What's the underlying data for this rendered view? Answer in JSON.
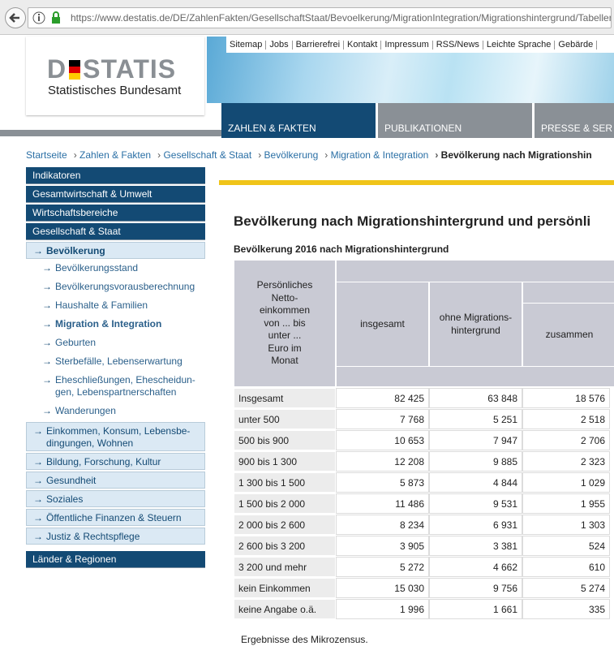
{
  "browser": {
    "url": "https://www.destatis.de/DE/ZahlenFakten/GesellschaftStaat/Bevoelkerung/MigrationIntegration/Migrationshintergrund/Tabellen/Migratior"
  },
  "header": {
    "logo_parts": [
      "D",
      "STATIS"
    ],
    "logo_subtitle": "Statistisches Bundesamt",
    "service_links": [
      "Sitemap",
      "Jobs",
      "Barrierefrei",
      "Kontakt",
      "Impressum",
      "RSS/News",
      "Leichte Sprache",
      "Gebärde"
    ],
    "tabs": [
      "ZAHLEN & FAKTEN",
      "PUBLIKATIONEN",
      "PRESSE & SER"
    ]
  },
  "breadcrumb": [
    "Startseite",
    "Zahlen & Fakten",
    "Gesellschaft & Staat",
    "Bevölkerung",
    "Migration & Integration",
    "Bevölkerung nach Migrationshin"
  ],
  "sidebar": {
    "top_items": [
      "Indikatoren",
      "Gesamtwirtschaft & Umwelt",
      "Wirtschaftsbereiche",
      "Gesellschaft & Staat"
    ],
    "current_section": "Bevölkerung",
    "sub_items": [
      "Bevölkerungsstand",
      "Bevölkerungsvorausberechnung",
      "Haushalte & Familien",
      "Migration & Integration",
      "Geburten",
      "Sterbefälle, Lebenserwartung",
      "Eheschließungen, Ehescheidun-\ngen, Lebenspartnerschaften",
      "Wanderungen"
    ],
    "more_sections": [
      "Einkommen, Konsum, Lebensbe-\ndingungen, Wohnen",
      "Bildung, Forschung, Kultur",
      "Gesundheit",
      "Soziales",
      "Öffentliche Finanzen & Steuern",
      "Justiz & Rechtspflege"
    ],
    "bottom_item": "Länder & Regionen"
  },
  "content": {
    "title": "Bevölkerung nach Migrationshintergrund und persönli",
    "table_caption": "Bevölkerung 2016 nach Migrationshintergrund",
    "table": {
      "row_header": "Persönliches\nNetto-\neinkommen\nvon ... bis\nunter ...\nEuro im\nMonat",
      "columns": [
        "insgesamt",
        "ohne Migrations-\nhintergrund",
        "zusammen"
      ],
      "rows": [
        [
          "Insgesamt",
          "82 425",
          "63 848",
          "18 576"
        ],
        [
          "unter 500",
          "7 768",
          "5 251",
          "2 518"
        ],
        [
          "500 bis 900",
          "10 653",
          "7 947",
          "2 706"
        ],
        [
          "900 bis 1 300",
          "12 208",
          "9 885",
          "2 323"
        ],
        [
          "1 300 bis 1 500",
          "5 873",
          "4 844",
          "1 029"
        ],
        [
          "1 500 bis 2 000",
          "11 486",
          "9 531",
          "1 955"
        ],
        [
          "2 000 bis 2 600",
          "8 234",
          "6 931",
          "1 303"
        ],
        [
          "2 600 bis 3 200",
          "3 905",
          "3 381",
          "524"
        ],
        [
          "3 200 und mehr",
          "5 272",
          "4 662",
          "610"
        ],
        [
          "kein Einkommen",
          "15 030",
          "9 756",
          "5 274"
        ],
        [
          "keine Angabe o.ä.",
          "1 996",
          "1 661",
          "335"
        ]
      ]
    },
    "footnote": "Ergebnisse des Mikrozensus."
  }
}
